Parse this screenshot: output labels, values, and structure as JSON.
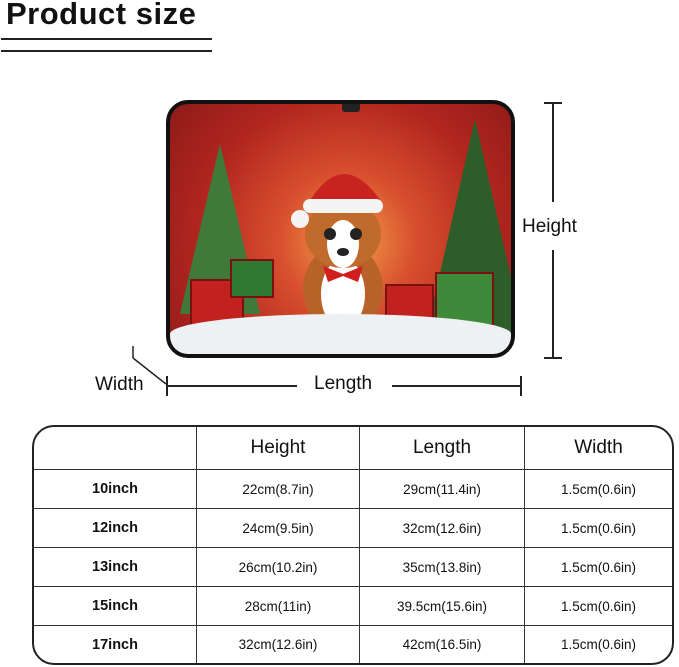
{
  "title": "Product size",
  "diagram": {
    "height_label": "Height",
    "length_label": "Length",
    "width_label": "Width"
  },
  "table": {
    "headers": [
      "",
      "Height",
      "Length",
      "Width"
    ],
    "rows": [
      {
        "size": "10inch",
        "height": "22cm(8.7in)",
        "length": "29cm(11.4in)",
        "width": "1.5cm(0.6in)"
      },
      {
        "size": "12inch",
        "height": "24cm(9.5in)",
        "length": "32cm(12.6in)",
        "width": "1.5cm(0.6in)"
      },
      {
        "size": "13inch",
        "height": "26cm(10.2in)",
        "length": "35cm(13.8in)",
        "width": "1.5cm(0.6in)"
      },
      {
        "size": "15inch",
        "height": "28cm(11in)",
        "length": "39.5cm(15.6in)",
        "width": "1.5cm(0.6in)"
      },
      {
        "size": "17inch",
        "height": "32cm(12.6in)",
        "length": "42cm(16.5in)",
        "width": "1.5cm(0.6in)"
      }
    ]
  }
}
